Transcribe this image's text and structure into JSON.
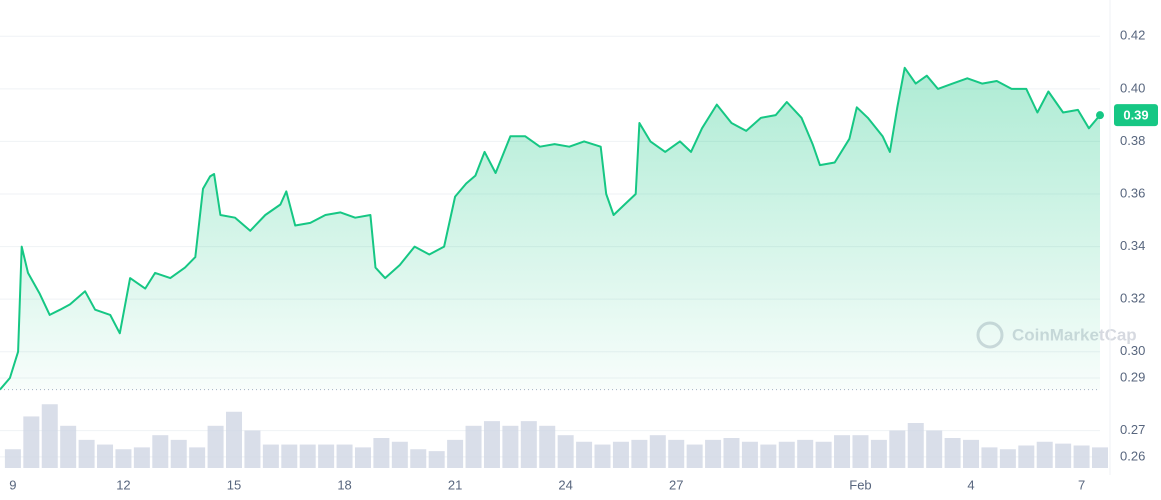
{
  "chart_data": {
    "type": "line",
    "xlim": [
      -0.35,
      29.5
    ],
    "xticks": [
      {
        "value": 0,
        "label": "9"
      },
      {
        "value": 3,
        "label": "12"
      },
      {
        "value": 6,
        "label": "15"
      },
      {
        "value": 9,
        "label": "18"
      },
      {
        "value": 12,
        "label": "21"
      },
      {
        "value": 15,
        "label": "24"
      },
      {
        "value": 18,
        "label": "27"
      },
      {
        "value": 23,
        "label": "Feb"
      },
      {
        "value": 26,
        "label": "4"
      },
      {
        "value": 29,
        "label": "7"
      }
    ],
    "ylim": [
      0.255,
      0.43
    ],
    "yticks": [
      0.26,
      0.27,
      0.29,
      {
        "value": 0.3,
        "label": "0.30"
      },
      0.32,
      0.34,
      0.36,
      0.38,
      {
        "value": 0.4,
        "label": "0.40"
      },
      0.42
    ],
    "grid": true,
    "reference_line": 0.2856,
    "watermark": "CoinMarketCap",
    "series": [
      {
        "color": "#16c784",
        "x": [
          -0.35,
          -0.08,
          0.14,
          0.24,
          0.41,
          0.73,
          1.0,
          1.28,
          1.55,
          1.96,
          2.23,
          2.64,
          2.9,
          3.18,
          3.59,
          3.86,
          4.27,
          4.67,
          4.95,
          5.16,
          5.35,
          5.46,
          5.63,
          6.03,
          6.44,
          6.85,
          7.26,
          7.42,
          7.66,
          8.07,
          8.48,
          8.89,
          9.29,
          9.7,
          9.84,
          10.1,
          10.5,
          10.9,
          11.3,
          11.7,
          12.0,
          12.3,
          12.55,
          12.8,
          13.1,
          13.5,
          13.9,
          14.3,
          14.7,
          15.1,
          15.5,
          15.95,
          16.1,
          16.3,
          16.6,
          16.9,
          17.0,
          17.3,
          17.7,
          18.1,
          18.4,
          18.7,
          19.1,
          19.5,
          19.9,
          20.3,
          20.7,
          21.0,
          21.4,
          21.7,
          21.9,
          22.3,
          22.7,
          22.9,
          23.2,
          23.6,
          23.8,
          24.0,
          24.2,
          24.5,
          24.8,
          25.1,
          25.5,
          25.9,
          26.3,
          26.7,
          27.1,
          27.5,
          27.8,
          28.1,
          28.5,
          28.9,
          29.2,
          29.5
        ],
        "values": [
          0.2856,
          0.29,
          0.3,
          0.34,
          0.33,
          0.322,
          0.314,
          0.316,
          0.318,
          0.323,
          0.316,
          0.314,
          0.307,
          0.328,
          0.324,
          0.33,
          0.328,
          0.332,
          0.336,
          0.362,
          0.3667,
          0.3676,
          0.352,
          0.351,
          0.346,
          0.352,
          0.356,
          0.361,
          0.348,
          0.349,
          0.352,
          0.353,
          0.351,
          0.352,
          0.332,
          0.328,
          0.333,
          0.34,
          0.337,
          0.34,
          0.359,
          0.364,
          0.367,
          0.376,
          0.368,
          0.382,
          0.382,
          0.378,
          0.379,
          0.378,
          0.38,
          0.378,
          0.36,
          0.352,
          0.356,
          0.36,
          0.387,
          0.38,
          0.376,
          0.38,
          0.376,
          0.385,
          0.394,
          0.387,
          0.384,
          0.389,
          0.39,
          0.395,
          0.389,
          0.379,
          0.371,
          0.372,
          0.381,
          0.393,
          0.389,
          0.382,
          0.376,
          0.393,
          0.408,
          0.402,
          0.405,
          0.4,
          0.402,
          0.404,
          0.402,
          0.403,
          0.4,
          0.4,
          0.391,
          0.399,
          0.391,
          0.392,
          0.385,
          0.39
        ]
      }
    ],
    "volume": {
      "color": "#cfd6e4",
      "vlim": [
        0,
        80
      ],
      "x": [
        0,
        0.5,
        1,
        1.5,
        2,
        2.5,
        3,
        3.5,
        4,
        4.5,
        5,
        5.5,
        6,
        6.5,
        7,
        7.5,
        8,
        8.5,
        9,
        9.5,
        10,
        10.5,
        11,
        11.5,
        12,
        12.5,
        13,
        13.5,
        14,
        14.5,
        15,
        15.5,
        16,
        16.5,
        17,
        17.5,
        18,
        18.5,
        19,
        19.5,
        20,
        20.5,
        21,
        21.5,
        22,
        22.5,
        23,
        23.5,
        24,
        24.5,
        25,
        25.5,
        26,
        26.5,
        27,
        27.5,
        28,
        28.5,
        29,
        29.5
      ],
      "values": [
        20,
        55,
        68,
        45,
        30,
        25,
        20,
        22,
        35,
        30,
        22,
        45,
        60,
        40,
        25,
        25,
        25,
        25,
        25,
        22,
        32,
        28,
        20,
        18,
        30,
        45,
        50,
        45,
        50,
        45,
        35,
        28,
        25,
        28,
        30,
        35,
        30,
        25,
        30,
        32,
        28,
        25,
        28,
        30,
        28,
        35,
        35,
        30,
        40,
        48,
        40,
        32,
        30,
        22,
        20,
        24,
        28,
        26,
        24,
        22
      ]
    }
  }
}
